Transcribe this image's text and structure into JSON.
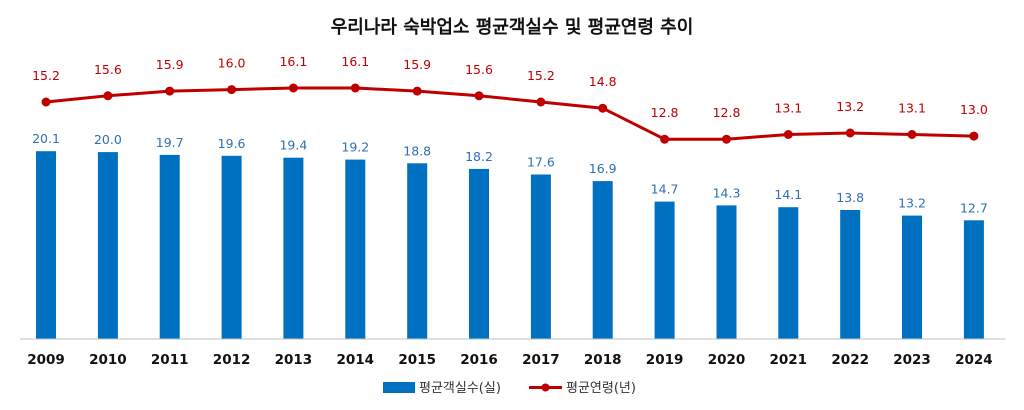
{
  "chart_data": {
    "type": "bar",
    "title": "우리나라 숙박업소 평균객실수 및 평균연령 추이",
    "categories": [
      "2009",
      "2010",
      "2011",
      "2012",
      "2013",
      "2014",
      "2015",
      "2016",
      "2017",
      "2018",
      "2019",
      "2020",
      "2021",
      "2022",
      "2023",
      "2024"
    ],
    "series": [
      {
        "name": "평균객실수(실)",
        "type": "bar",
        "color": "#0070c0",
        "label_color": "#2e6fb6",
        "values": [
          20.1,
          20.0,
          19.7,
          19.6,
          19.4,
          19.2,
          18.8,
          18.2,
          17.6,
          16.9,
          14.7,
          14.3,
          14.1,
          13.8,
          13.2,
          12.7
        ],
        "labels": [
          "20.1",
          "20.0",
          "19.7",
          "19.6",
          "19.4",
          "19.2",
          "18.8",
          "18.2",
          "17.6",
          "16.9",
          "14.7",
          "14.3",
          "14.1",
          "13.8",
          "13.2",
          "12.7"
        ]
      },
      {
        "name": "평균연령(년)",
        "type": "line",
        "color": "#c00000",
        "values": [
          15.2,
          15.6,
          15.9,
          16.0,
          16.1,
          16.1,
          15.9,
          15.6,
          15.2,
          14.8,
          12.8,
          12.8,
          13.1,
          13.2,
          13.1,
          13.0
        ],
        "labels": [
          "15.2",
          "15.6",
          "15.9",
          "16.0",
          "16.1",
          "16.1",
          "15.9",
          "15.6",
          "15.2",
          "14.8",
          "12.8",
          "12.8",
          "13.1",
          "13.2",
          "13.1",
          "13.0"
        ]
      }
    ],
    "legend_position": "bottom",
    "grid": false
  }
}
